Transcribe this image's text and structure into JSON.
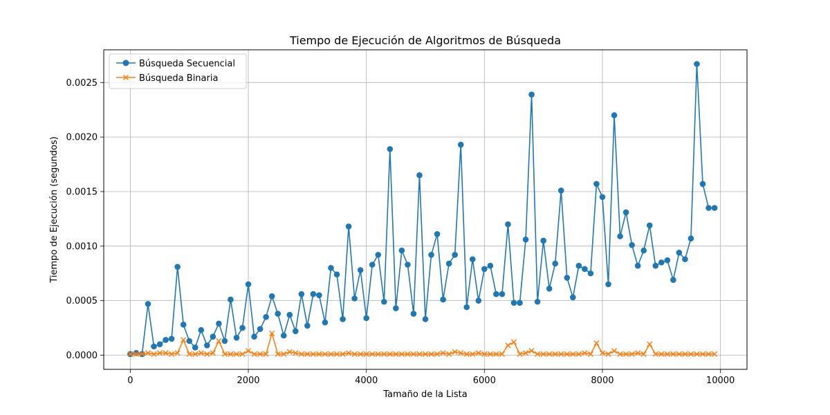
{
  "chart_data": {
    "type": "line",
    "title": "Tiempo de Ejecución de Algoritmos de Búsqueda",
    "xlabel": "Tamaño de la Lista",
    "ylabel": "Tiempo de Ejecución (segundos)",
    "xlim": [
      -450,
      10450
    ],
    "ylim": [
      -0.00013,
      0.0028
    ],
    "x_ticks": [
      0,
      2000,
      4000,
      6000,
      8000,
      10000
    ],
    "x_tick_labels": [
      "0",
      "2000",
      "4000",
      "6000",
      "8000",
      "10000"
    ],
    "y_ticks": [
      0.0,
      0.0005,
      0.001,
      0.0015,
      0.002,
      0.0025
    ],
    "y_tick_labels": [
      "0.0000",
      "0.0005",
      "0.0010",
      "0.0015",
      "0.0020",
      "0.0025"
    ],
    "grid": true,
    "legend_position": "top-left",
    "x": [
      0,
      100,
      200,
      300,
      400,
      500,
      600,
      700,
      800,
      900,
      1000,
      1100,
      1200,
      1300,
      1400,
      1500,
      1600,
      1700,
      1800,
      1900,
      2000,
      2100,
      2200,
      2300,
      2400,
      2500,
      2600,
      2700,
      2800,
      2900,
      3000,
      3100,
      3200,
      3300,
      3400,
      3500,
      3600,
      3700,
      3800,
      3900,
      4000,
      4100,
      4200,
      4300,
      4400,
      4500,
      4600,
      4700,
      4800,
      4900,
      5000,
      5100,
      5200,
      5300,
      5400,
      5500,
      5600,
      5700,
      5800,
      5900,
      6000,
      6100,
      6200,
      6300,
      6400,
      6500,
      6600,
      6700,
      6800,
      6900,
      7000,
      7100,
      7200,
      7300,
      7400,
      7500,
      7600,
      7700,
      7800,
      7900,
      8000,
      8100,
      8200,
      8300,
      8400,
      8500,
      8600,
      8700,
      8800,
      8900,
      9000,
      9100,
      9200,
      9300,
      9400,
      9500,
      9600,
      9700,
      9800,
      9900
    ],
    "series": [
      {
        "name": "Búsqueda Secuencial",
        "color": "#1f77b4",
        "marker": "circle",
        "values": [
          1e-05,
          2e-05,
          1e-05,
          0.00047,
          8e-05,
          0.0001,
          0.00014,
          0.00015,
          0.00081,
          0.00028,
          0.00013,
          7e-05,
          0.00023,
          9e-05,
          0.00017,
          0.00029,
          0.00013,
          0.00051,
          0.00016,
          0.00025,
          0.00065,
          0.00017,
          0.00024,
          0.00035,
          0.00054,
          0.00038,
          0.00018,
          0.00037,
          0.00022,
          0.00056,
          0.00027,
          0.00056,
          0.00055,
          0.0003,
          0.0008,
          0.00074,
          0.00033,
          0.00118,
          0.00052,
          0.00078,
          0.00034,
          0.00083,
          0.00092,
          0.00049,
          0.00189,
          0.00043,
          0.00096,
          0.00083,
          0.00038,
          0.00165,
          0.00033,
          0.00092,
          0.00111,
          0.00051,
          0.00084,
          0.00092,
          0.00193,
          0.00044,
          0.00088,
          0.0005,
          0.00079,
          0.00082,
          0.00056,
          0.00056,
          0.0012,
          0.00048,
          0.00048,
          0.00106,
          0.00239,
          0.00049,
          0.00105,
          0.00061,
          0.00084,
          0.00151,
          0.00071,
          0.00053,
          0.00082,
          0.00079,
          0.00075,
          0.00157,
          0.00145,
          0.00065,
          0.0022,
          0.00109,
          0.00131,
          0.00101,
          0.00082,
          0.00096,
          0.00119,
          0.00082,
          0.00085,
          0.00087,
          0.00069,
          0.00094,
          0.00088,
          0.00107,
          0.00267,
          0.00157,
          0.00135,
          0.00135
        ]
      },
      {
        "name": "Búsqueda Binaria",
        "color": "#ff7f0e",
        "marker": "x",
        "values": [
          1e-05,
          1e-05,
          1e-05,
          2e-05,
          1e-05,
          2e-05,
          2e-05,
          1e-05,
          2e-05,
          0.00014,
          1e-05,
          1e-05,
          2e-05,
          1e-05,
          2e-05,
          0.00013,
          1e-05,
          1e-05,
          1e-05,
          1e-05,
          4e-05,
          1e-05,
          1e-05,
          1e-05,
          0.0002,
          1e-05,
          1e-05,
          3e-05,
          2e-05,
          1e-05,
          1e-05,
          1e-05,
          1e-05,
          1e-05,
          1e-05,
          1e-05,
          1e-05,
          2e-05,
          1e-05,
          1e-05,
          1e-05,
          1e-05,
          1e-05,
          1e-05,
          1e-05,
          1e-05,
          1e-05,
          1e-05,
          1e-05,
          1e-05,
          1e-05,
          1e-05,
          1e-05,
          2e-05,
          1e-05,
          3e-05,
          2e-05,
          1e-05,
          1e-05,
          2e-05,
          1e-05,
          1e-05,
          1e-05,
          1e-05,
          9e-05,
          0.00012,
          1e-05,
          2e-05,
          4e-05,
          1e-05,
          1e-05,
          1e-05,
          1e-05,
          1e-05,
          1e-05,
          1e-05,
          1e-05,
          2e-05,
          1e-05,
          0.00011,
          2e-05,
          1e-05,
          4e-05,
          1e-05,
          1e-05,
          1e-05,
          2e-05,
          1e-05,
          0.0001,
          1e-05,
          1e-05,
          1e-05,
          1e-05,
          1e-05,
          1e-05,
          1e-05,
          1e-05,
          1e-05,
          1e-05,
          1e-05
        ]
      }
    ]
  }
}
